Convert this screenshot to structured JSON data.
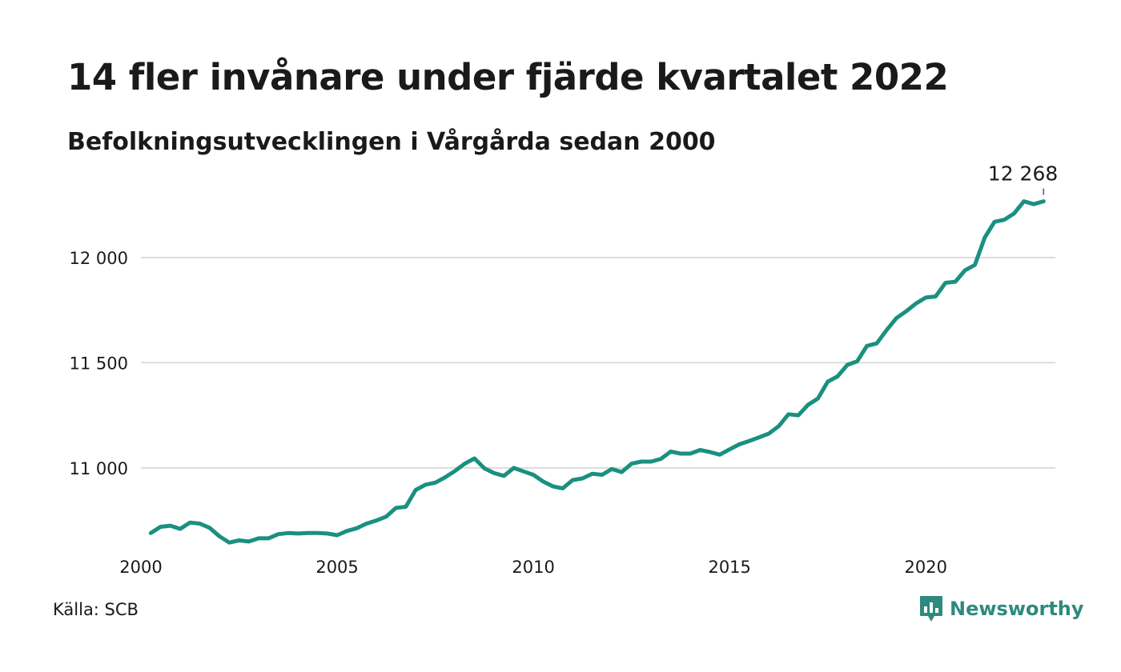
{
  "title": "14 fler invånare under fjärde kvartalet 2022",
  "subtitle": "Befolkningsutvecklingen i Vårgårda sedan 2000",
  "source": "Källa: SCB",
  "brand": "Newsworthy",
  "colors": {
    "line": "#1a9080",
    "grid": "#dcdcdc",
    "brand": "#2e8a7e"
  },
  "chart_data": {
    "type": "line",
    "title": "14 fler invånare under fjärde kvartalet 2022",
    "subtitle": "Befolkningsutvecklingen i Vårgårda sedan 2000",
    "xlabel": "",
    "ylabel": "",
    "xlim": [
      2000,
      2023.3
    ],
    "ylim": [
      10600,
      12350
    ],
    "grid": "horizontal",
    "x_ticks": [
      2000,
      2005,
      2010,
      2015,
      2020
    ],
    "x_tick_labels": [
      "2000",
      "2005",
      "2010",
      "2015",
      "2020"
    ],
    "y_ticks": [
      11000,
      11500,
      12000
    ],
    "y_tick_labels": [
      "11 000",
      "11 500",
      "12 000"
    ],
    "end_label": "12 268",
    "series": [
      {
        "x": [
          2000.25,
          2000.5,
          2000.75,
          2001,
          2001.25,
          2001.5,
          2001.75,
          2002,
          2002.25,
          2002.5,
          2002.75,
          2003,
          2003.25,
          2003.5,
          2003.75,
          2004,
          2004.25,
          2004.5,
          2004.75,
          2005,
          2005.25,
          2005.5,
          2005.75,
          2006,
          2006.25,
          2006.5,
          2006.75,
          2007,
          2007.25,
          2007.5,
          2007.75,
          2008,
          2008.25,
          2008.5,
          2008.75,
          2009,
          2009.25,
          2009.5,
          2009.75,
          2010,
          2010.25,
          2010.5,
          2010.75,
          2011,
          2011.25,
          2011.5,
          2011.75,
          2012,
          2012.25,
          2012.5,
          2012.75,
          2013,
          2013.25,
          2013.5,
          2013.75,
          2014,
          2014.25,
          2014.5,
          2014.75,
          2015,
          2015.25,
          2015.5,
          2015.75,
          2016,
          2016.25,
          2016.5,
          2016.75,
          2017,
          2017.25,
          2017.5,
          2017.75,
          2018,
          2018.25,
          2018.5,
          2018.75,
          2019,
          2019.25,
          2019.5,
          2019.75,
          2020,
          2020.25,
          2020.5,
          2020.75,
          2021,
          2021.25,
          2021.5,
          2021.75,
          2022,
          2022.25,
          2022.5,
          2022.75,
          2023
        ],
        "values": [
          10690,
          10720,
          10725,
          10710,
          10740,
          10735,
          10715,
          10675,
          10645,
          10655,
          10650,
          10665,
          10665,
          10685,
          10690,
          10688,
          10690,
          10690,
          10688,
          10680,
          10700,
          10713,
          10735,
          10750,
          10768,
          10810,
          10815,
          10895,
          10920,
          10930,
          10955,
          10985,
          11020,
          11045,
          10998,
          10975,
          10962,
          11000,
          10983,
          10967,
          10935,
          10912,
          10903,
          10942,
          10950,
          10972,
          10967,
          10995,
          10980,
          11020,
          11030,
          11030,
          11043,
          11078,
          11068,
          11068,
          11085,
          11075,
          11063,
          11088,
          11112,
          11128,
          11145,
          11163,
          11198,
          11255,
          11250,
          11300,
          11330,
          11410,
          11435,
          11490,
          11507,
          11580,
          11592,
          11655,
          11712,
          11745,
          11782,
          11810,
          11815,
          11880,
          11885,
          11940,
          11965,
          12095,
          12170,
          12180,
          12210,
          12268,
          12254,
          12268
        ]
      }
    ]
  }
}
